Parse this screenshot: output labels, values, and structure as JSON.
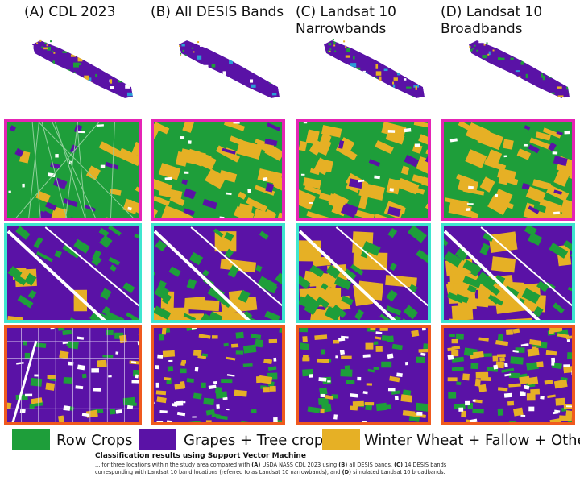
{
  "columns": [
    {
      "lines": [
        "(A) CDL 2023"
      ]
    },
    {
      "lines": [
        "(B) All DESIS Bands"
      ]
    },
    {
      "lines": [
        "(C) Landsat 10",
        "Narrowbands"
      ]
    },
    {
      "lines": [
        "(D) Landsat 10",
        "Broadbands"
      ]
    }
  ],
  "legend": [
    {
      "label": "Row Crops",
      "color": "#1e9e3a"
    },
    {
      "label": "Grapes + Tree crops",
      "color": "#5a12a6"
    },
    {
      "label": "Winter Wheat + Fallow + Other",
      "color": "#e6b025"
    }
  ],
  "caption": {
    "title": "Classification results using Support Vector Machine",
    "segments": [
      {
        "text": "... for three locations within the study area compared with ",
        "bold": false
      },
      {
        "text": "(A)",
        "bold": true
      },
      {
        "text": " USDA NASS CDL 2023 using ",
        "bold": false
      },
      {
        "text": "(B)",
        "bold": true
      },
      {
        "text": " all DESIS bands, ",
        "bold": false
      },
      {
        "text": "(C)",
        "bold": true
      },
      {
        "text": " 14 DESIS bands corresponding with Landsat 10 band locations (referred to as Landsat 10 narrowbands), and ",
        "bold": false
      },
      {
        "text": "(D)",
        "bold": true
      },
      {
        "text": " simulated Landsat 10 broadbands.",
        "bold": false
      }
    ]
  }
}
